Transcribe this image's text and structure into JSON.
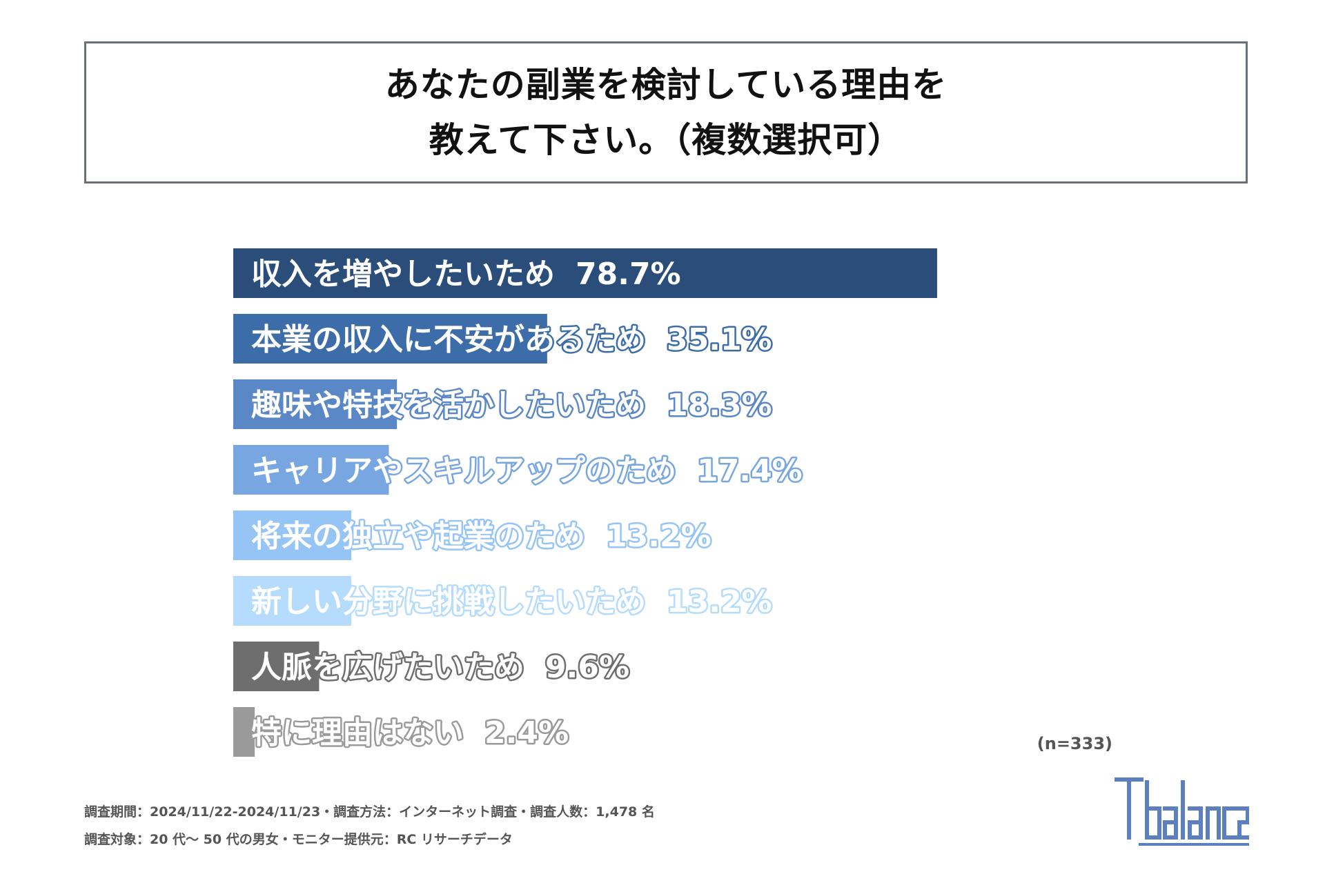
{
  "title": {
    "line1": "あなたの副業を検討している理由を",
    "line2": "教えて下さい。（複数選択可）"
  },
  "chart_data": {
    "type": "bar",
    "orientation": "horizontal",
    "categories": [
      "収入を増やしたいため",
      "本業の収入に不安があるため",
      "趣味や特技を活かしたいため",
      "キャリアやスキルアップのため",
      "将来の独立や起業のため",
      "新しい分野に挑戦したいため",
      "人脈を広げたいため",
      "特に理由はない"
    ],
    "values": [
      78.7,
      35.1,
      18.3,
      17.4,
      13.2,
      13.2,
      9.6,
      2.4
    ],
    "value_labels": [
      "78.7%",
      "35.1%",
      "18.3%",
      "17.4%",
      "13.2%",
      "13.2%",
      "9.6%",
      "2.4%"
    ],
    "colors": [
      "#2a4e79",
      "#3d6da9",
      "#5a87c6",
      "#78a6e0",
      "#96c5f5",
      "#b5dcfc",
      "#6e6e6e",
      "#9a9a9a"
    ],
    "unit": "%",
    "grid": false,
    "legend": "none"
  },
  "sample_note": "(n=333)",
  "footer": {
    "line1": "調査期間：2024/11/22-2024/11/23・調査方法：インターネット調査・調査人数：1,478 名",
    "line2": "調査対象：20 代～ 50 代の男女・モニター提供元：RC リサーチデータ"
  },
  "logo": {
    "text": "Tbalance",
    "color": "#5b7fbf"
  }
}
